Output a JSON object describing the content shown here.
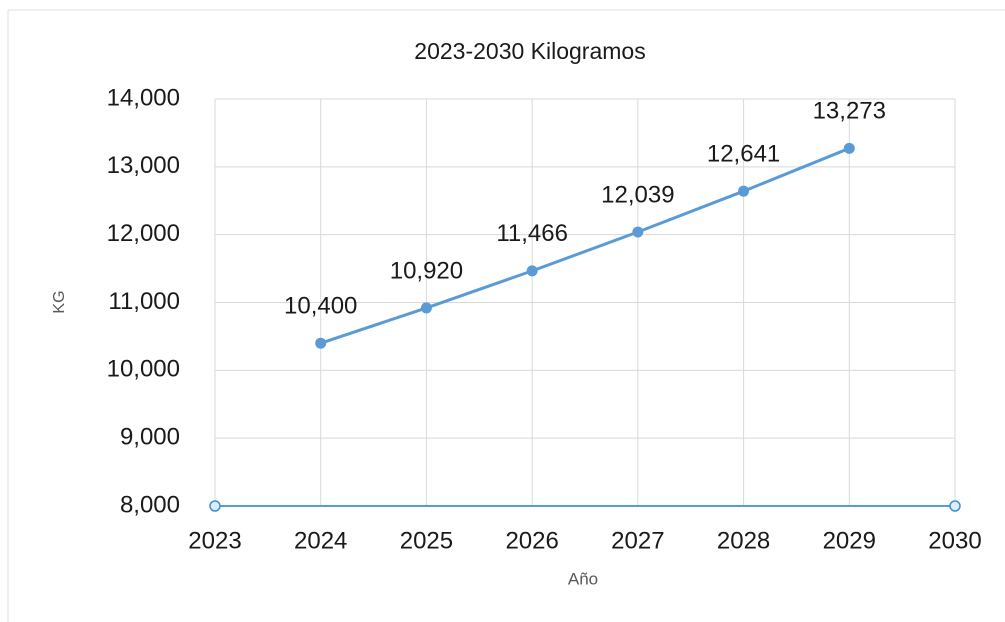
{
  "chart_data": {
    "type": "line",
    "title": "2023-2030 Kilogramos",
    "x_label": "Año",
    "y_label": "KG",
    "x": [
      2024,
      2025,
      2026,
      2027,
      2028,
      2029
    ],
    "series": [
      {
        "name": "KG",
        "color": "#5b9bd5",
        "values": [
          10400,
          10920,
          11466,
          12039,
          12641,
          13273
        ],
        "value_labels": [
          "10,400",
          "10,920",
          "11,466",
          "12,039",
          "12,641",
          "13,273"
        ]
      }
    ],
    "xlim": [
      2023,
      2030
    ],
    "xticks": [
      2023,
      2024,
      2025,
      2026,
      2027,
      2028,
      2029,
      2030
    ],
    "ylim": [
      8000,
      14000
    ],
    "yticks": [
      {
        "value": 8000,
        "label": "8,000"
      },
      {
        "value": 9000,
        "label": "9,000"
      },
      {
        "value": 10000,
        "label": "10,000"
      },
      {
        "value": 11000,
        "label": "11,000"
      },
      {
        "value": 12000,
        "label": "12,000"
      },
      {
        "value": 13000,
        "label": "13,000"
      },
      {
        "value": 14000,
        "label": "14,000"
      }
    ],
    "grid": true
  }
}
